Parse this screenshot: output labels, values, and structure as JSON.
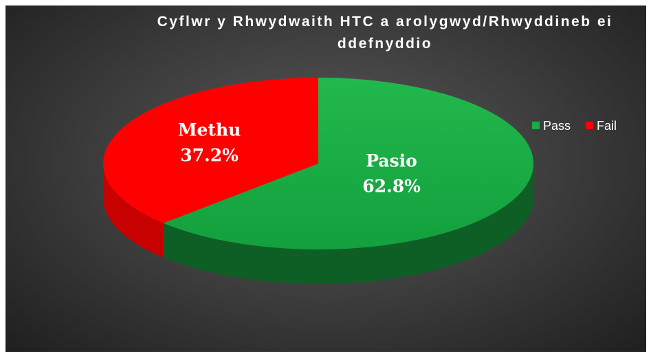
{
  "chart_data": {
    "type": "pie",
    "title": "Cyflwr y Rhwydwaith HTC a arolygwyd/Rhwyddineb ei ddefnyddio",
    "categories": [
      "Pass",
      "Fail"
    ],
    "labels": [
      "Pasio",
      "Methu"
    ],
    "values": [
      62.8,
      37.2
    ],
    "value_labels": [
      "62.8%",
      "37.2%"
    ],
    "colors": [
      "#1aac45",
      "#ff0000"
    ],
    "legend": "right",
    "three_d": true
  }
}
